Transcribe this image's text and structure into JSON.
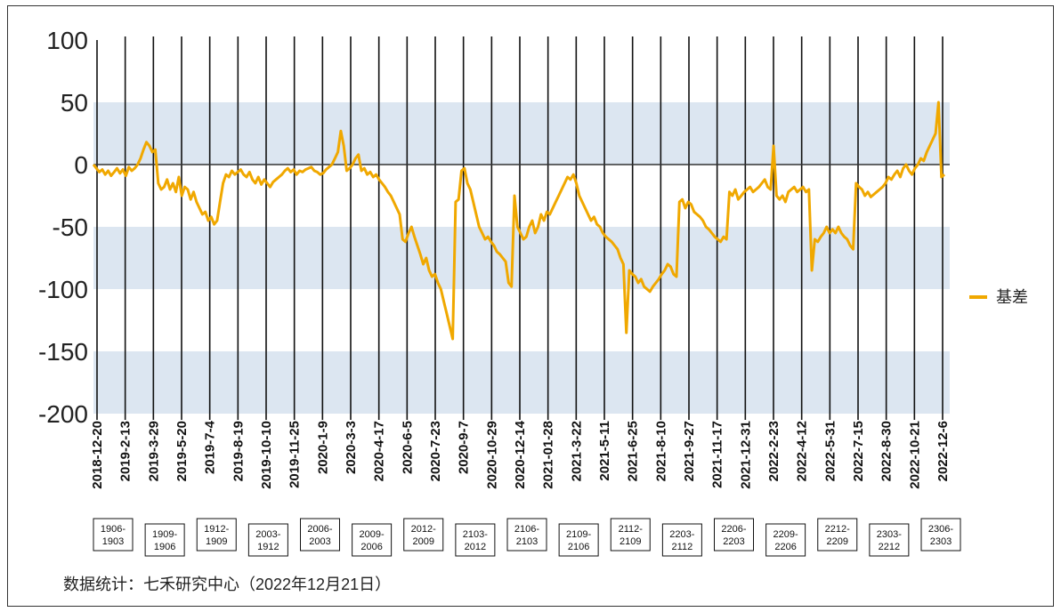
{
  "chart_data": {
    "type": "line",
    "title": "",
    "xlabel": "",
    "ylabel": "",
    "ylim": [
      -200,
      100
    ],
    "yticks": [
      100,
      50,
      0,
      -50,
      -100,
      -150,
      -200
    ],
    "bands": [
      [
        0,
        50
      ],
      [
        -100,
        -50
      ],
      [
        -200,
        -150
      ]
    ],
    "band_color": "#dce6f1",
    "line_color": "#f0a800",
    "legend_position": "right",
    "series": [
      {
        "name": "基差",
        "values": [
          0,
          -3,
          -6,
          -4,
          -8,
          -5,
          -9,
          -6,
          -3,
          -7,
          -4,
          -9,
          -2,
          -5,
          -3,
          0,
          5,
          12,
          18,
          15,
          10,
          12,
          -15,
          -20,
          -18,
          -12,
          -20,
          -15,
          -22,
          -10,
          -25,
          -18,
          -20,
          -28,
          -22,
          -30,
          -35,
          -40,
          -38,
          -45,
          -42,
          -48,
          -45,
          -30,
          -15,
          -8,
          -10,
          -5,
          -8,
          -6,
          -4,
          -8,
          -10,
          -6,
          -12,
          -15,
          -10,
          -16,
          -12,
          -15,
          -18,
          -14,
          -12,
          -10,
          -8,
          -5,
          -3,
          -6,
          -4,
          -8,
          -5,
          -6,
          -4,
          -3,
          -2,
          -5,
          -6,
          -8,
          -7,
          -4,
          -2,
          0,
          5,
          10,
          27,
          15,
          -5,
          -3,
          0,
          5,
          8,
          -5,
          -3,
          -8,
          -6,
          -10,
          -8,
          -12,
          -15,
          -18,
          -22,
          -25,
          -30,
          -35,
          -40,
          -60,
          -62,
          -55,
          -50,
          -58,
          -65,
          -72,
          -80,
          -75,
          -85,
          -90,
          -88,
          -95,
          -100,
          -110,
          -120,
          -130,
          -140,
          -30,
          -28,
          -5,
          -3,
          -15,
          -20,
          -30,
          -40,
          -50,
          -55,
          -60,
          -58,
          -62,
          -65,
          -70,
          -72,
          -75,
          -78,
          -95,
          -98,
          -25,
          -50,
          -55,
          -60,
          -58,
          -50,
          -45,
          -55,
          -50,
          -40,
          -45,
          -38,
          -40,
          -35,
          -30,
          -25,
          -20,
          -15,
          -10,
          -12,
          -8,
          -15,
          -25,
          -30,
          -35,
          -40,
          -45,
          -42,
          -48,
          -50,
          -55,
          -58,
          -60,
          -62,
          -65,
          -68,
          -75,
          -80,
          -135,
          -85,
          -88,
          -90,
          -95,
          -92,
          -98,
          -100,
          -102,
          -98,
          -95,
          -92,
          -88,
          -85,
          -80,
          -82,
          -88,
          -90,
          -30,
          -28,
          -35,
          -30,
          -32,
          -38,
          -40,
          -42,
          -45,
          -50,
          -52,
          -55,
          -58,
          -60,
          -62,
          -58,
          -60,
          -22,
          -25,
          -20,
          -28,
          -25,
          -22,
          -20,
          -18,
          -22,
          -20,
          -18,
          -15,
          -12,
          -18,
          -20,
          15,
          -25,
          -28,
          -25,
          -30,
          -22,
          -20,
          -18,
          -22,
          -20,
          -18,
          -22,
          -20,
          -85,
          -60,
          -62,
          -58,
          -55,
          -50,
          -55,
          -52,
          -55,
          -50,
          -55,
          -58,
          -60,
          -65,
          -68,
          -15,
          -18,
          -20,
          -25,
          -22,
          -26,
          -24,
          -22,
          -20,
          -18,
          -15,
          -10,
          -12,
          -8,
          -5,
          -10,
          -3,
          0,
          -5,
          -8,
          -3,
          0,
          5,
          3,
          10,
          15,
          20,
          25,
          50,
          -10,
          -8
        ]
      }
    ],
    "x_tick_labels": [
      "2018-12-20",
      "2019-2-13",
      "2019-3-29",
      "2019-5-20",
      "2019-7-4",
      "2019-8-19",
      "2019-10-10",
      "2019-11-25",
      "2020-1-9",
      "2020-3-3",
      "2020-4-17",
      "2020-6-5",
      "2020-7-23",
      "2020-9-7",
      "2020-10-29",
      "2020-12-14",
      "2021-01-28",
      "2021-3-22",
      "2021-5-11",
      "2021-6-25",
      "2021-8-10",
      "2021-9-27",
      "2021-11-17",
      "2021-12-31",
      "2022-2-23",
      "2022-4-12",
      "2022-5-31",
      "2022-7-15",
      "2022-8-30",
      "2022-10-21",
      "2022-12-6"
    ],
    "contract_boxes": [
      {
        "line1": "1906-",
        "line2": "1903"
      },
      {
        "line1": "1909-",
        "line2": "1906"
      },
      {
        "line1": "1912-",
        "line2": "1909"
      },
      {
        "line1": "2003-",
        "line2": "1912"
      },
      {
        "line1": "2006-",
        "line2": "2003"
      },
      {
        "line1": "2009-",
        "line2": "2006"
      },
      {
        "line1": "2012-",
        "line2": "2009"
      },
      {
        "line1": "2103-",
        "line2": "2012"
      },
      {
        "line1": "2106-",
        "line2": "2103"
      },
      {
        "line1": "2109-",
        "line2": "2106"
      },
      {
        "line1": "2112-",
        "line2": "2109"
      },
      {
        "line1": "2203-",
        "line2": "2112"
      },
      {
        "line1": "2206-",
        "line2": "2203"
      },
      {
        "line1": "2209-",
        "line2": "2206"
      },
      {
        "line1": "2212-",
        "line2": "2209"
      },
      {
        "line1": "2303-",
        "line2": "2212"
      },
      {
        "line1": "2306-",
        "line2": "2303"
      }
    ],
    "source_note": "数据统计：七禾研究中心（2022年12月21日）"
  }
}
